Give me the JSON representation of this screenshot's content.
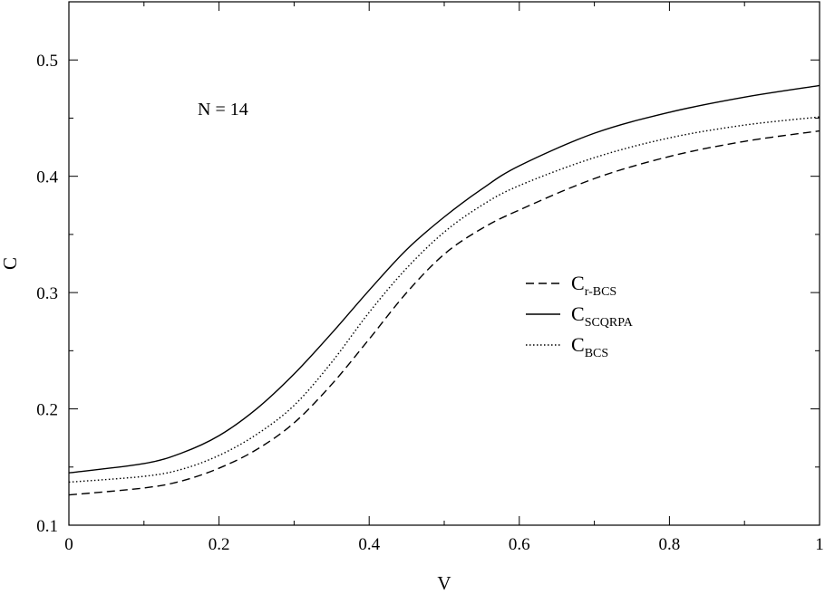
{
  "chart_data": {
    "type": "line",
    "xlabel": "V",
    "ylabel": "C",
    "xlim": [
      0,
      1
    ],
    "ylim": [
      0.1,
      0.55
    ],
    "xticks": [
      "0",
      "0.2",
      "0.4",
      "0.6",
      "0.8",
      "1"
    ],
    "yticks": [
      "0.1",
      "0.2",
      "0.3",
      "0.4",
      "0.5"
    ],
    "annotation": "N = 14",
    "grid": false,
    "legend_position": "right-center",
    "x": [
      0,
      0.1,
      0.15,
      0.2,
      0.25,
      0.3,
      0.35,
      0.4,
      0.45,
      0.5,
      0.55,
      0.6,
      0.7,
      0.8,
      0.9,
      1.0
    ],
    "series": [
      {
        "name_main": "C",
        "name_sub": "r-BCS",
        "style": "dashed",
        "values": [
          0.126,
          0.132,
          0.138,
          0.149,
          0.165,
          0.188,
          0.221,
          0.26,
          0.3,
          0.333,
          0.355,
          0.371,
          0.398,
          0.417,
          0.43,
          0.439
        ]
      },
      {
        "name_main": "C",
        "name_sub": "SCQRPA",
        "style": "solid",
        "values": [
          0.145,
          0.153,
          0.162,
          0.177,
          0.2,
          0.23,
          0.265,
          0.302,
          0.337,
          0.365,
          0.389,
          0.409,
          0.437,
          0.455,
          0.468,
          0.478
        ]
      },
      {
        "name_main": "C",
        "name_sub": "BCS",
        "style": "dotted",
        "values": [
          0.137,
          0.142,
          0.148,
          0.16,
          0.178,
          0.203,
          0.24,
          0.283,
          0.321,
          0.352,
          0.375,
          0.392,
          0.416,
          0.433,
          0.444,
          0.451
        ]
      }
    ]
  }
}
